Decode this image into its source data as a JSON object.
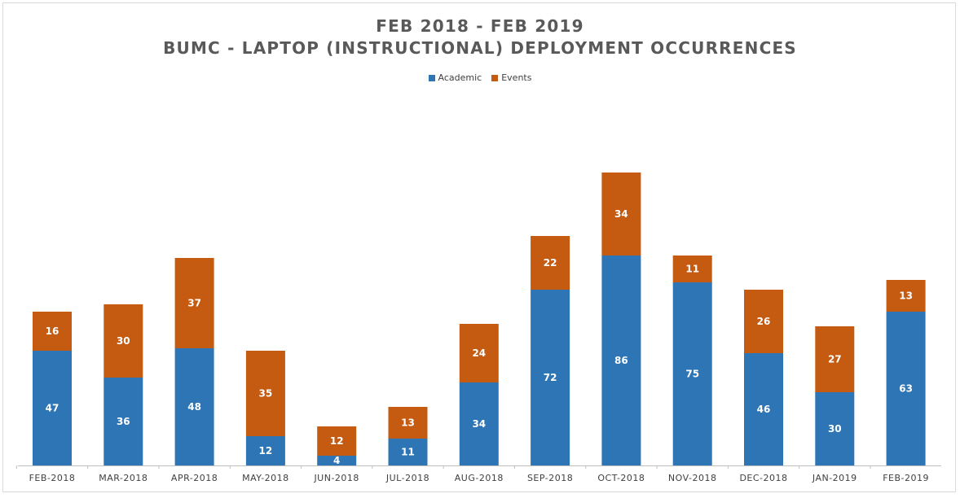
{
  "colors": {
    "academic": "#2e75b6",
    "events": "#c55a11",
    "axis": "#bfbfbf"
  },
  "chart_data": {
    "type": "bar",
    "stacked": true,
    "title": "FEB 2018 - FEB 2019",
    "subtitle": "BUMC - LAPTOP (INSTRUCTIONAL) DEPLOYMENT OCCURRENCES",
    "xlabel": "",
    "ylabel": "",
    "ylim": [
      0,
      130
    ],
    "grid": false,
    "legend_position": "top",
    "data_labels": true,
    "categories": [
      "FEB-2018",
      "MAR-2018",
      "APR-2018",
      "MAY-2018",
      "JUN-2018",
      "JUL-2018",
      "AUG-2018",
      "SEP-2018",
      "OCT-2018",
      "NOV-2018",
      "DEC-2018",
      "JAN-2019",
      "FEB-2019"
    ],
    "series": [
      {
        "name": "Academic",
        "color": "#2e75b6",
        "values": [
          47,
          36,
          48,
          12,
          4,
          11,
          34,
          72,
          86,
          75,
          46,
          30,
          63
        ]
      },
      {
        "name": "Events",
        "color": "#c55a11",
        "values": [
          16,
          30,
          37,
          35,
          12,
          13,
          24,
          22,
          34,
          11,
          26,
          27,
          13
        ]
      }
    ]
  }
}
